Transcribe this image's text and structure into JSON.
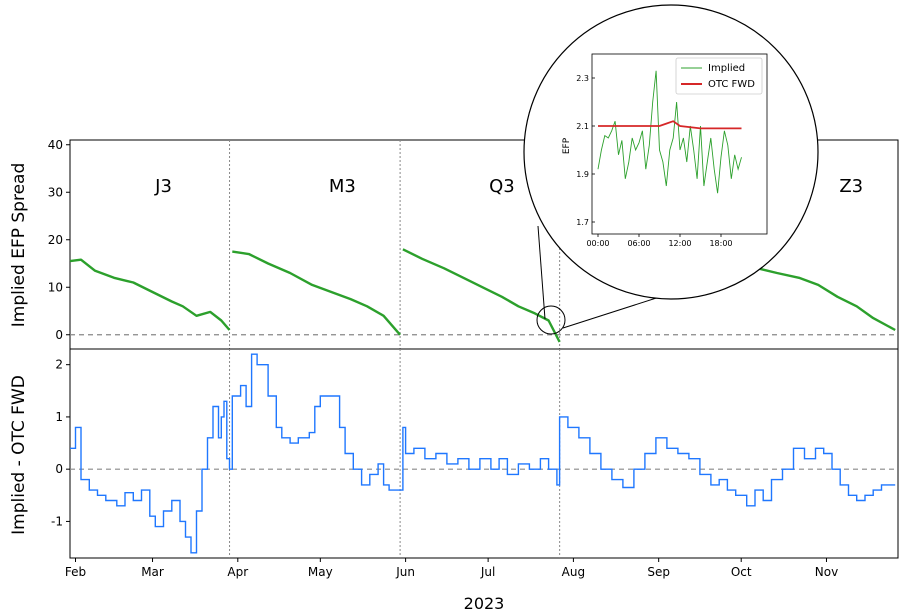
{
  "chart_data": [
    {
      "type": "line",
      "panel": "top",
      "ylabel": "Implied EFP Spread",
      "ylim": [
        -3,
        41
      ],
      "yticks": [
        0,
        10,
        20,
        30,
        40
      ],
      "contract_labels": [
        {
          "text": "J3",
          "x": "2023-03-05"
        },
        {
          "text": "M3",
          "x": "2023-05-09"
        },
        {
          "text": "Q3",
          "x": "2023-07-06"
        },
        {
          "text": "Z3",
          "x": "2023-11-10"
        }
      ],
      "vlines": [
        "2023-03-29",
        "2023-05-30",
        "2023-07-27"
      ],
      "hline": 0,
      "series": [
        {
          "color": "#2ca02c",
          "points": [
            [
              "2023-01-30",
              15.5
            ],
            [
              "2023-02-03",
              15.8
            ],
            [
              "2023-02-08",
              13.5
            ],
            [
              "2023-02-15",
              12.0
            ],
            [
              "2023-02-22",
              11.0
            ],
            [
              "2023-03-01",
              9.0
            ],
            [
              "2023-03-08",
              7.0
            ],
            [
              "2023-03-12",
              6.0
            ],
            [
              "2023-03-17",
              4.0
            ],
            [
              "2023-03-22",
              4.8
            ],
            [
              "2023-03-26",
              3.0
            ],
            [
              "2023-03-29",
              1.0
            ]
          ]
        },
        {
          "color": "#2ca02c",
          "points": [
            [
              "2023-03-30",
              17.5
            ],
            [
              "2023-04-05",
              17.0
            ],
            [
              "2023-04-12",
              15.0
            ],
            [
              "2023-04-20",
              13.0
            ],
            [
              "2023-04-28",
              10.5
            ],
            [
              "2023-05-05",
              9.0
            ],
            [
              "2023-05-12",
              7.5
            ],
            [
              "2023-05-18",
              6.0
            ],
            [
              "2023-05-24",
              4.0
            ],
            [
              "2023-05-30",
              0.0
            ]
          ]
        },
        {
          "color": "#2ca02c",
          "points": [
            [
              "2023-05-31",
              18.0
            ],
            [
              "2023-06-07",
              16.0
            ],
            [
              "2023-06-15",
              14.0
            ],
            [
              "2023-06-22",
              12.0
            ],
            [
              "2023-06-29",
              10.0
            ],
            [
              "2023-07-06",
              8.0
            ],
            [
              "2023-07-12",
              6.0
            ],
            [
              "2023-07-18",
              4.5
            ],
            [
              "2023-07-23",
              3.0
            ],
            [
              "2023-07-27",
              -1.5
            ]
          ]
        },
        {
          "color": "#2ca02c",
          "points": [
            [
              "2023-10-07",
              14.0
            ],
            [
              "2023-10-14",
              13.0
            ],
            [
              "2023-10-22",
              12.0
            ],
            [
              "2023-10-29",
              10.5
            ],
            [
              "2023-11-05",
              8.0
            ],
            [
              "2023-11-12",
              6.0
            ],
            [
              "2023-11-18",
              3.5
            ],
            [
              "2023-11-26",
              1.0
            ]
          ]
        }
      ]
    },
    {
      "type": "line",
      "panel": "bottom",
      "ylabel": "Implied - OTC FWD",
      "xlabel": "2023",
      "ylim": [
        -1.7,
        2.3
      ],
      "yticks": [
        -1,
        0,
        1,
        2
      ],
      "xticks": [
        {
          "label": "Feb",
          "x": "2023-02-01"
        },
        {
          "label": "Mar",
          "x": "2023-03-01"
        },
        {
          "label": "Apr",
          "x": "2023-04-01"
        },
        {
          "label": "May",
          "x": "2023-05-01"
        },
        {
          "label": "Jun",
          "x": "2023-06-01"
        },
        {
          "label": "Jul",
          "x": "2023-07-01"
        },
        {
          "label": "Aug",
          "x": "2023-08-01"
        },
        {
          "label": "Sep",
          "x": "2023-09-01"
        },
        {
          "label": "Oct",
          "x": "2023-10-01"
        },
        {
          "label": "Nov",
          "x": "2023-11-01"
        }
      ],
      "vlines": [
        "2023-03-29",
        "2023-05-30",
        "2023-07-27"
      ],
      "hline": 0,
      "series": [
        {
          "color": "#1f77ff",
          "steps": [
            [
              "2023-01-30",
              0.4
            ],
            [
              "2023-02-01",
              0.8
            ],
            [
              "2023-02-03",
              -0.2
            ],
            [
              "2023-02-06",
              -0.4
            ],
            [
              "2023-02-09",
              -0.5
            ],
            [
              "2023-02-12",
              -0.6
            ],
            [
              "2023-02-16",
              -0.7
            ],
            [
              "2023-02-19",
              -0.45
            ],
            [
              "2023-02-22",
              -0.6
            ],
            [
              "2023-02-25",
              -0.4
            ],
            [
              "2023-02-28",
              -0.9
            ],
            [
              "2023-03-02",
              -1.1
            ],
            [
              "2023-03-05",
              -0.8
            ],
            [
              "2023-03-08",
              -0.6
            ],
            [
              "2023-03-11",
              -1.0
            ],
            [
              "2023-03-13",
              -1.3
            ],
            [
              "2023-03-15",
              -1.6
            ],
            [
              "2023-03-17",
              -0.8
            ],
            [
              "2023-03-19",
              0.0
            ],
            [
              "2023-03-21",
              0.6
            ],
            [
              "2023-03-23",
              1.2
            ],
            [
              "2023-03-25",
              0.6
            ],
            [
              "2023-03-26",
              1.0
            ],
            [
              "2023-03-27",
              1.3
            ],
            [
              "2023-03-28",
              0.2
            ],
            [
              "2023-03-29",
              0.0
            ],
            [
              "2023-03-30",
              1.4
            ],
            [
              "2023-04-02",
              1.6
            ],
            [
              "2023-04-04",
              1.2
            ],
            [
              "2023-04-06",
              2.2
            ],
            [
              "2023-04-08",
              2.0
            ],
            [
              "2023-04-12",
              1.4
            ],
            [
              "2023-04-15",
              0.8
            ],
            [
              "2023-04-17",
              0.6
            ],
            [
              "2023-04-20",
              0.5
            ],
            [
              "2023-04-23",
              0.6
            ],
            [
              "2023-04-27",
              0.7
            ],
            [
              "2023-04-29",
              1.2
            ],
            [
              "2023-05-01",
              1.4
            ],
            [
              "2023-05-08",
              0.8
            ],
            [
              "2023-05-10",
              0.3
            ],
            [
              "2023-05-13",
              0.0
            ],
            [
              "2023-05-16",
              -0.3
            ],
            [
              "2023-05-19",
              -0.1
            ],
            [
              "2023-05-22",
              0.1
            ],
            [
              "2023-05-24",
              -0.3
            ],
            [
              "2023-05-26",
              -0.4
            ],
            [
              "2023-05-30",
              -0.4
            ],
            [
              "2023-05-31",
              0.8
            ],
            [
              "2023-06-01",
              0.3
            ],
            [
              "2023-06-04",
              0.4
            ],
            [
              "2023-06-08",
              0.2
            ],
            [
              "2023-06-12",
              0.3
            ],
            [
              "2023-06-16",
              0.1
            ],
            [
              "2023-06-20",
              0.2
            ],
            [
              "2023-06-24",
              0.0
            ],
            [
              "2023-06-28",
              0.2
            ],
            [
              "2023-07-02",
              0.0
            ],
            [
              "2023-07-05",
              0.2
            ],
            [
              "2023-07-08",
              -0.1
            ],
            [
              "2023-07-12",
              0.1
            ],
            [
              "2023-07-16",
              0.0
            ],
            [
              "2023-07-20",
              0.2
            ],
            [
              "2023-07-23",
              0.0
            ],
            [
              "2023-07-26",
              -0.3
            ],
            [
              "2023-07-27",
              1.0
            ],
            [
              "2023-07-30",
              0.8
            ],
            [
              "2023-08-03",
              0.6
            ],
            [
              "2023-08-07",
              0.3
            ],
            [
              "2023-08-11",
              0.0
            ],
            [
              "2023-08-15",
              -0.2
            ],
            [
              "2023-08-19",
              -0.35
            ],
            [
              "2023-08-23",
              0.0
            ],
            [
              "2023-08-27",
              0.3
            ],
            [
              "2023-08-31",
              0.6
            ],
            [
              "2023-09-04",
              0.4
            ],
            [
              "2023-09-08",
              0.3
            ],
            [
              "2023-09-12",
              0.2
            ],
            [
              "2023-09-16",
              -0.1
            ],
            [
              "2023-09-20",
              -0.3
            ],
            [
              "2023-09-23",
              -0.2
            ],
            [
              "2023-09-26",
              -0.4
            ],
            [
              "2023-09-29",
              -0.5
            ],
            [
              "2023-10-03",
              -0.7
            ],
            [
              "2023-10-06",
              -0.4
            ],
            [
              "2023-10-09",
              -0.6
            ],
            [
              "2023-10-12",
              -0.2
            ],
            [
              "2023-10-16",
              0.0
            ],
            [
              "2023-10-20",
              0.4
            ],
            [
              "2023-10-24",
              0.2
            ],
            [
              "2023-10-28",
              0.4
            ],
            [
              "2023-10-31",
              0.3
            ],
            [
              "2023-11-03",
              0.0
            ],
            [
              "2023-11-06",
              -0.3
            ],
            [
              "2023-11-09",
              -0.5
            ],
            [
              "2023-11-12",
              -0.6
            ],
            [
              "2023-11-15",
              -0.5
            ],
            [
              "2023-11-18",
              -0.4
            ],
            [
              "2023-11-21",
              -0.3
            ],
            [
              "2023-11-26",
              -0.3
            ]
          ]
        }
      ]
    },
    {
      "type": "line",
      "panel": "inset",
      "ylabel": "EFP",
      "ylim": [
        1.65,
        2.4
      ],
      "yticks": [
        1.7,
        1.9,
        2.1,
        2.3
      ],
      "xticks": [
        "00:00",
        "06:00",
        "12:00",
        "18:00"
      ],
      "xlim_hours": [
        0,
        24
      ],
      "legend_position": "top-right",
      "series": [
        {
          "name": "Implied",
          "color": "#2ca02c",
          "points": [
            [
              0.0,
              1.92
            ],
            [
              0.5,
              2.0
            ],
            [
              1.0,
              2.06
            ],
            [
              1.5,
              2.05
            ],
            [
              2.0,
              2.08
            ],
            [
              2.5,
              2.12
            ],
            [
              3.0,
              1.98
            ],
            [
              3.5,
              2.04
            ],
            [
              4.0,
              1.88
            ],
            [
              4.5,
              1.95
            ],
            [
              5.0,
              2.05
            ],
            [
              5.5,
              2.0
            ],
            [
              6.0,
              2.03
            ],
            [
              6.5,
              2.08
            ],
            [
              7.0,
              1.92
            ],
            [
              7.5,
              2.02
            ],
            [
              8.0,
              2.2
            ],
            [
              8.5,
              2.33
            ],
            [
              9.0,
              2.0
            ],
            [
              9.5,
              1.95
            ],
            [
              10.0,
              1.85
            ],
            [
              10.5,
              2.0
            ],
            [
              11.0,
              2.05
            ],
            [
              11.5,
              2.2
            ],
            [
              12.0,
              2.0
            ],
            [
              12.5,
              2.05
            ],
            [
              13.0,
              1.95
            ],
            [
              13.5,
              2.1
            ],
            [
              14.0,
              2.0
            ],
            [
              14.5,
              1.88
            ],
            [
              15.0,
              2.1
            ],
            [
              15.5,
              1.85
            ],
            [
              16.0,
              1.95
            ],
            [
              16.5,
              2.05
            ],
            [
              17.0,
              1.92
            ],
            [
              17.5,
              1.82
            ],
            [
              18.0,
              1.97
            ],
            [
              18.5,
              2.08
            ],
            [
              19.0,
              2.02
            ],
            [
              19.5,
              1.88
            ],
            [
              20.0,
              1.98
            ],
            [
              20.5,
              1.92
            ],
            [
              21.0,
              1.97
            ]
          ]
        },
        {
          "name": "OTC FWD",
          "color": "#d62728",
          "points": [
            [
              0.0,
              2.1
            ],
            [
              3.0,
              2.1
            ],
            [
              6.0,
              2.1
            ],
            [
              9.0,
              2.1
            ],
            [
              10.0,
              2.11
            ],
            [
              11.0,
              2.12
            ],
            [
              12.0,
              2.1
            ],
            [
              15.0,
              2.09
            ],
            [
              18.0,
              2.09
            ],
            [
              21.0,
              2.09
            ]
          ]
        }
      ]
    }
  ]
}
